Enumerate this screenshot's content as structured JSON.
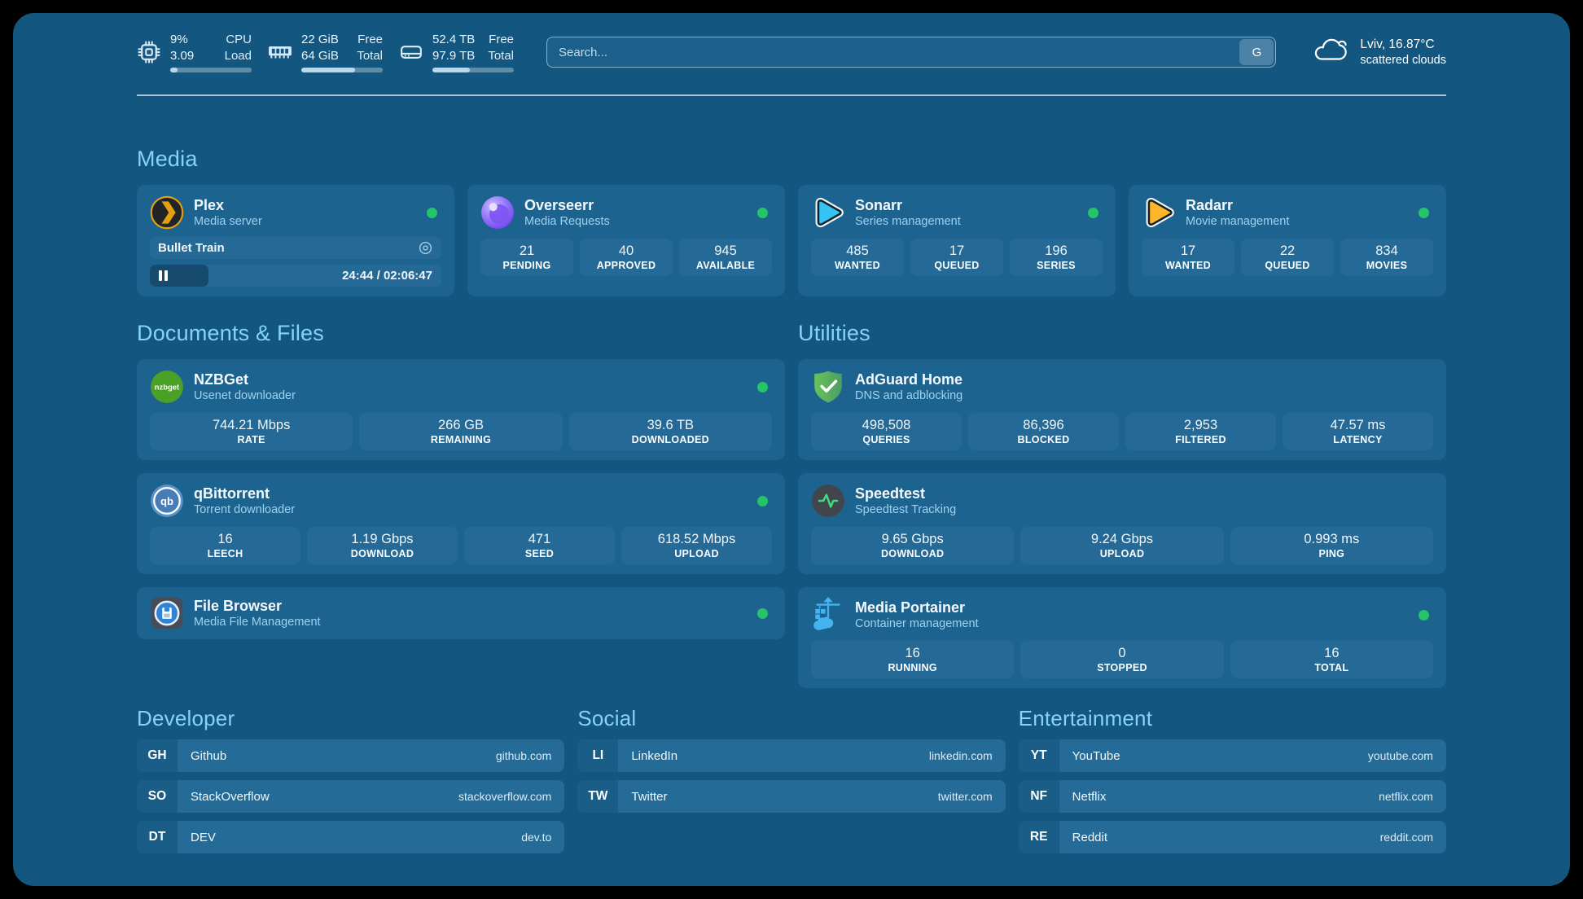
{
  "header": {
    "metrics": [
      {
        "icon": "cpu-icon",
        "rows": [
          {
            "value": "9%",
            "label": "CPU"
          },
          {
            "value": "3.09",
            "label": "Load"
          }
        ],
        "progress_pct": 9
      },
      {
        "icon": "memory-icon",
        "rows": [
          {
            "value": "22 GiB",
            "label": "Free"
          },
          {
            "value": "64 GiB",
            "label": "Total"
          }
        ],
        "progress_pct": 66
      },
      {
        "icon": "disk-icon",
        "rows": [
          {
            "value": "52.4 TB",
            "label": "Free"
          },
          {
            "value": "97.9 TB",
            "label": "Total"
          }
        ],
        "progress_pct": 46
      }
    ],
    "search": {
      "placeholder": "Search...",
      "button_label": "G"
    },
    "weather": {
      "icon": "cloud-icon",
      "location": "Lviv, 16.87°C",
      "condition": "scattered clouds"
    }
  },
  "sections": {
    "media": "Media",
    "documents": "Documents & Files",
    "utilities": "Utilities",
    "developer": "Developer",
    "social": "Social",
    "entertainment": "Entertainment"
  },
  "apps": {
    "plex": {
      "icon": "plex-icon",
      "title": "Plex",
      "subtitle": "Media server",
      "status": "online",
      "now_playing": {
        "title": "Bullet Train",
        "state": "paused",
        "progress_pct": 20,
        "time": "24:44 / 02:06:47"
      }
    },
    "overseerr": {
      "icon": "overseerr-icon",
      "title": "Overseerr",
      "subtitle": "Media Requests",
      "status": "online",
      "stats": [
        {
          "value": "21",
          "label": "PENDING"
        },
        {
          "value": "40",
          "label": "APPROVED"
        },
        {
          "value": "945",
          "label": "AVAILABLE"
        }
      ]
    },
    "sonarr": {
      "icon": "sonarr-icon",
      "title": "Sonarr",
      "subtitle": "Series management",
      "status": "online",
      "stats": [
        {
          "value": "485",
          "label": "WANTED"
        },
        {
          "value": "17",
          "label": "QUEUED"
        },
        {
          "value": "196",
          "label": "SERIES"
        }
      ]
    },
    "radarr": {
      "icon": "radarr-icon",
      "title": "Radarr",
      "subtitle": "Movie management",
      "status": "online",
      "stats": [
        {
          "value": "17",
          "label": "WANTED"
        },
        {
          "value": "22",
          "label": "QUEUED"
        },
        {
          "value": "834",
          "label": "MOVIES"
        }
      ]
    },
    "nzbget": {
      "icon": "nzbget-icon",
      "title": "NZBGet",
      "subtitle": "Usenet downloader",
      "status": "online",
      "stats": [
        {
          "value": "744.21 Mbps",
          "label": "RATE"
        },
        {
          "value": "266 GB",
          "label": "REMAINING"
        },
        {
          "value": "39.6 TB",
          "label": "DOWNLOADED"
        }
      ]
    },
    "qbittorrent": {
      "icon": "qbittorrent-icon",
      "title": "qBittorrent",
      "subtitle": "Torrent downloader",
      "status": "online",
      "stats": [
        {
          "value": "16",
          "label": "LEECH"
        },
        {
          "value": "1.19 Gbps",
          "label": "DOWNLOAD"
        },
        {
          "value": "471",
          "label": "SEED"
        },
        {
          "value": "618.52 Mbps",
          "label": "UPLOAD"
        }
      ]
    },
    "filebrowser": {
      "icon": "filebrowser-icon",
      "title": "File Browser",
      "subtitle": "Media File Management",
      "status": "online"
    },
    "adguard": {
      "icon": "adguard-icon",
      "title": "AdGuard Home",
      "subtitle": "DNS and adblocking",
      "stats": [
        {
          "value": "498,508",
          "label": "QUERIES"
        },
        {
          "value": "86,396",
          "label": "BLOCKED"
        },
        {
          "value": "2,953",
          "label": "FILTERED"
        },
        {
          "value": "47.57 ms",
          "label": "LATENCY"
        }
      ]
    },
    "speedtest": {
      "icon": "speedtest-icon",
      "title": "Speedtest",
      "subtitle": "Speedtest Tracking",
      "stats": [
        {
          "value": "9.65 Gbps",
          "label": "DOWNLOAD"
        },
        {
          "value": "9.24 Gbps",
          "label": "UPLOAD"
        },
        {
          "value": "0.993 ms",
          "label": "PING"
        }
      ]
    },
    "portainer": {
      "icon": "portainer-icon",
      "title": "Media Portainer",
      "subtitle": "Container management",
      "status": "online",
      "stats": [
        {
          "value": "16",
          "label": "RUNNING"
        },
        {
          "value": "0",
          "label": "STOPPED"
        },
        {
          "value": "16",
          "label": "TOTAL"
        }
      ]
    }
  },
  "links": {
    "developer": [
      {
        "abbr": "GH",
        "name": "Github",
        "url": "github.com"
      },
      {
        "abbr": "SO",
        "name": "StackOverflow",
        "url": "stackoverflow.com"
      },
      {
        "abbr": "DT",
        "name": "DEV",
        "url": "dev.to"
      }
    ],
    "social": [
      {
        "abbr": "LI",
        "name": "LinkedIn",
        "url": "linkedin.com"
      },
      {
        "abbr": "TW",
        "name": "Twitter",
        "url": "twitter.com"
      }
    ],
    "entertainment": [
      {
        "abbr": "YT",
        "name": "YouTube",
        "url": "youtube.com"
      },
      {
        "abbr": "NF",
        "name": "Netflix",
        "url": "netflix.com"
      },
      {
        "abbr": "RE",
        "name": "Reddit",
        "url": "reddit.com"
      }
    ]
  },
  "colors": {
    "panel_bg": "#135781",
    "card_bg": "#1d6390",
    "stat_bg": "#256996",
    "section_title": "#85d4f4",
    "status_online": "#25c468",
    "plex_accent": "#e5a00d"
  }
}
